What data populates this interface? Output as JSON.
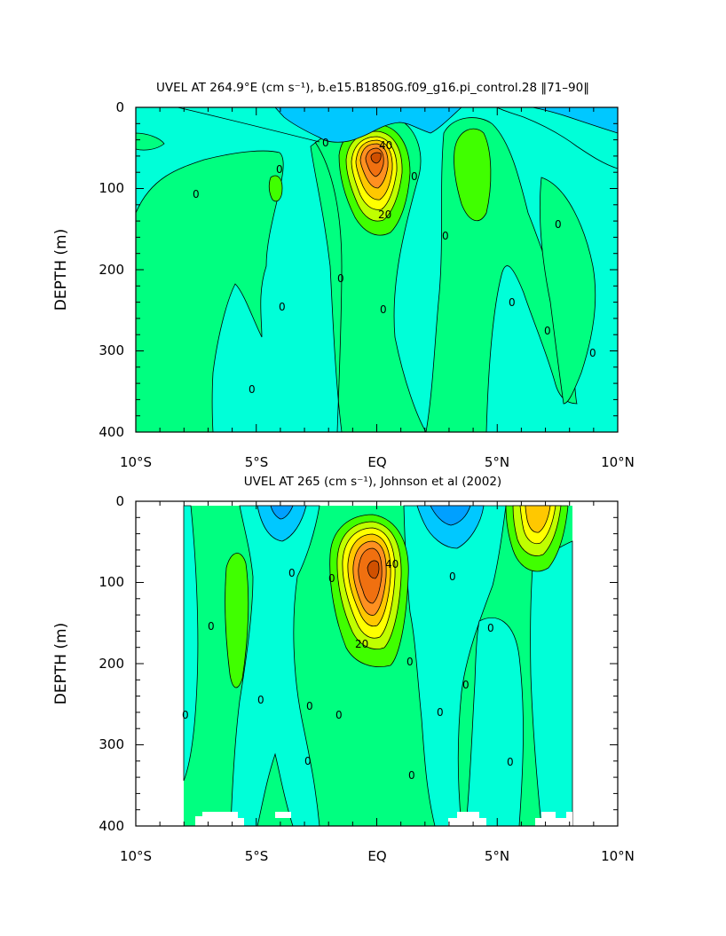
{
  "chart_data": [
    {
      "type": "contour",
      "title": "UVEL AT 264.9°E (cm s⁻¹), b.e15.B1850G.f09_g16.pi_control.28 ‖71–90‖",
      "ylabel": "DEPTH (m)",
      "xlabel": "",
      "xlim": [
        -10,
        10
      ],
      "ylim": [
        400,
        0
      ],
      "x_ticks": [
        "10°S",
        "5°S",
        "EQ",
        "5°N",
        "10°N"
      ],
      "y_ticks": [
        "0",
        "100",
        "200",
        "300",
        "400"
      ],
      "contour_labels": [
        "0",
        "0",
        "0",
        "0",
        "0",
        "0",
        "0",
        "0",
        "0",
        "0",
        "0",
        "0",
        "0",
        "20",
        "40"
      ],
      "colors": {
        "very_negative": "#00c8ff",
        "negative": "#00ffd8",
        "positive": "#00ff80",
        "low": "#40ff00",
        "mid": "#c0ff00",
        "high": "#ffff00",
        "higher": "#ffc800",
        "highest": "#ff9020",
        "peak": "#f07010"
      }
    },
    {
      "type": "contour",
      "title": "UVEL AT 265 (cm s⁻¹), Johnson et al (2002)",
      "ylabel": "DEPTH (m)",
      "xlabel": "",
      "xlim": [
        -10,
        10
      ],
      "ylim": [
        400,
        0
      ],
      "x_ticks": [
        "10°S",
        "5°S",
        "EQ",
        "5°N",
        "10°N"
      ],
      "y_ticks": [
        "0",
        "100",
        "200",
        "300",
        "400"
      ],
      "contour_labels": [
        "0",
        "0",
        "0",
        "0",
        "0",
        "0",
        "0",
        "0",
        "0",
        "0",
        "0",
        "0",
        "0",
        "0",
        "0",
        "20",
        "40"
      ],
      "colors": {
        "very_negative": "#00a0ff",
        "negative": "#00ffd8",
        "positive": "#00ff80",
        "low": "#40ff00",
        "mid": "#c0ff00",
        "high": "#ffff00",
        "higher": "#ffc800",
        "highest": "#ff9020",
        "peak": "#f07010"
      }
    }
  ]
}
